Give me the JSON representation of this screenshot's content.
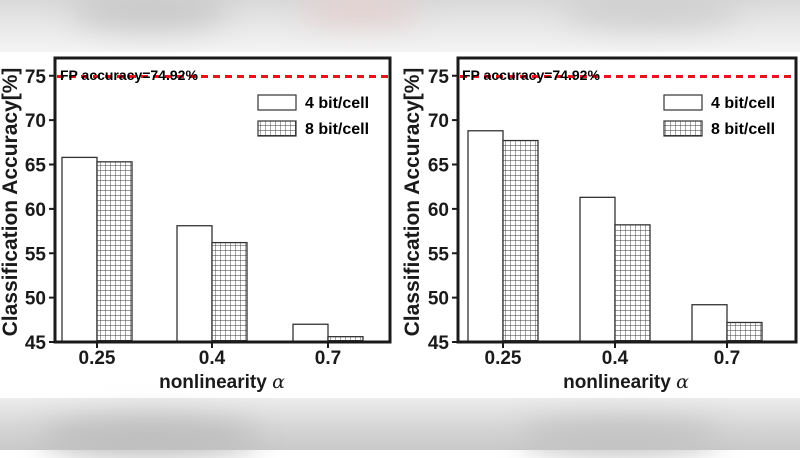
{
  "chart_data": [
    {
      "type": "bar",
      "title": "",
      "categories": [
        "0.25",
        "0.4",
        "0.7"
      ],
      "series": [
        {
          "name": "4 bit/cell",
          "pattern": "solid",
          "values": [
            65.8,
            58.1,
            47.0
          ]
        },
        {
          "name": "8 bit/cell",
          "pattern": "grid",
          "values": [
            65.3,
            56.2,
            45.6
          ]
        }
      ],
      "ylabel": "Classification Accuracy[%]",
      "xlabel": "nonlinearity",
      "xlabel_symbol": "α",
      "ylim": [
        45,
        77
      ],
      "yticks": [
        "45",
        "50",
        "55",
        "60",
        "65",
        "70",
        "75"
      ],
      "reference_line": {
        "value": 74.92,
        "label": "FP accuracy=74.92%",
        "color": "#e8141c"
      },
      "legend_position": "top-right"
    },
    {
      "type": "bar",
      "title": "",
      "categories": [
        "0.25",
        "0.4",
        "0.7"
      ],
      "series": [
        {
          "name": "4 bit/cell",
          "pattern": "solid",
          "values": [
            68.8,
            61.3,
            49.2
          ]
        },
        {
          "name": "8 bit/cell",
          "pattern": "grid",
          "values": [
            67.7,
            58.2,
            47.2
          ]
        }
      ],
      "ylabel": "Classification Accuracy[%]",
      "xlabel": "nonlinearity",
      "xlabel_symbol": "α",
      "ylim": [
        45,
        77
      ],
      "yticks": [
        "45",
        "50",
        "55",
        "60",
        "65",
        "70",
        "75"
      ],
      "reference_line": {
        "value": 74.92,
        "label": "FP accuracy=74.92%",
        "color": "#e8141c"
      },
      "legend_position": "top-right"
    }
  ],
  "colors": {
    "axis": "#1a1a1a",
    "bar_fill": "#ffffff",
    "bar_stroke": "#333333",
    "grid_pattern": "#3a3a3a"
  }
}
